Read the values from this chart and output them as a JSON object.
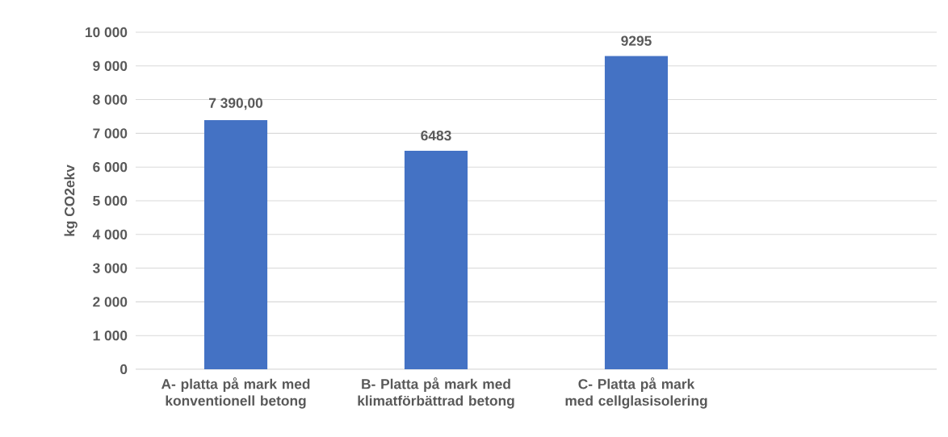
{
  "chart_data": {
    "type": "bar",
    "ylabel": "kg CO2ekv",
    "categories": [
      "A- platta på mark med konventionell betong",
      "B- Platta på mark med klimatförbättrad betong",
      "C- Platta på mark med cellglasisolering",
      null
    ],
    "values": [
      7390,
      6483,
      9295,
      null
    ],
    "value_labels": [
      "7 390,00",
      "6483",
      "9295",
      null
    ],
    "color": "#4472c4",
    "ylim": [
      0,
      10000
    ],
    "yticks": [
      {
        "value": 0,
        "label": "0"
      },
      {
        "value": 1000,
        "label": "1 000"
      },
      {
        "value": 2000,
        "label": "2 000"
      },
      {
        "value": 3000,
        "label": "3 000"
      },
      {
        "value": 4000,
        "label": "4 000"
      },
      {
        "value": 5000,
        "label": "5 000"
      },
      {
        "value": 6000,
        "label": "6 000"
      },
      {
        "value": 7000,
        "label": "7 000"
      },
      {
        "value": 8000,
        "label": "8 000"
      },
      {
        "value": 9000,
        "label": "9 000"
      },
      {
        "value": 10000,
        "label": "10 000"
      }
    ],
    "grid": "y"
  }
}
